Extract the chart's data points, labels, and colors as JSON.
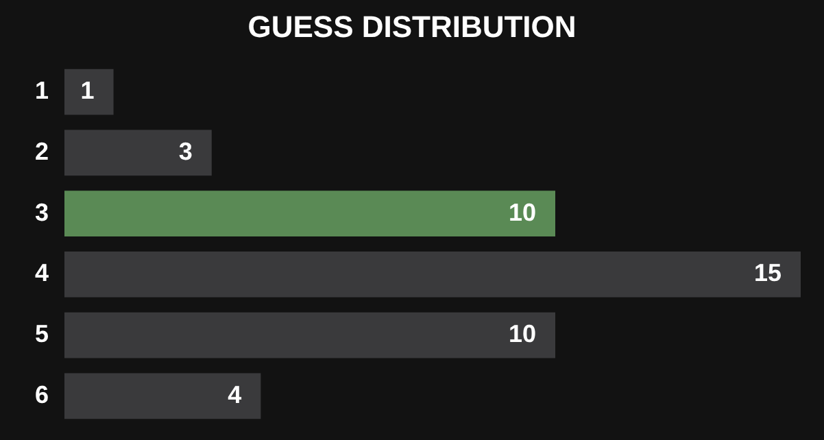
{
  "chart_data": {
    "type": "bar",
    "orientation": "horizontal",
    "title": "GUESS DISTRIBUTION",
    "categories": [
      "1",
      "2",
      "3",
      "4",
      "5",
      "6"
    ],
    "values": [
      1,
      3,
      10,
      15,
      10,
      4
    ],
    "colors": [
      "#3a3a3c",
      "#3a3a3c",
      "#5a8a55",
      "#3a3a3c",
      "#3a3a3c",
      "#3a3a3c"
    ],
    "data_labels": true
  }
}
